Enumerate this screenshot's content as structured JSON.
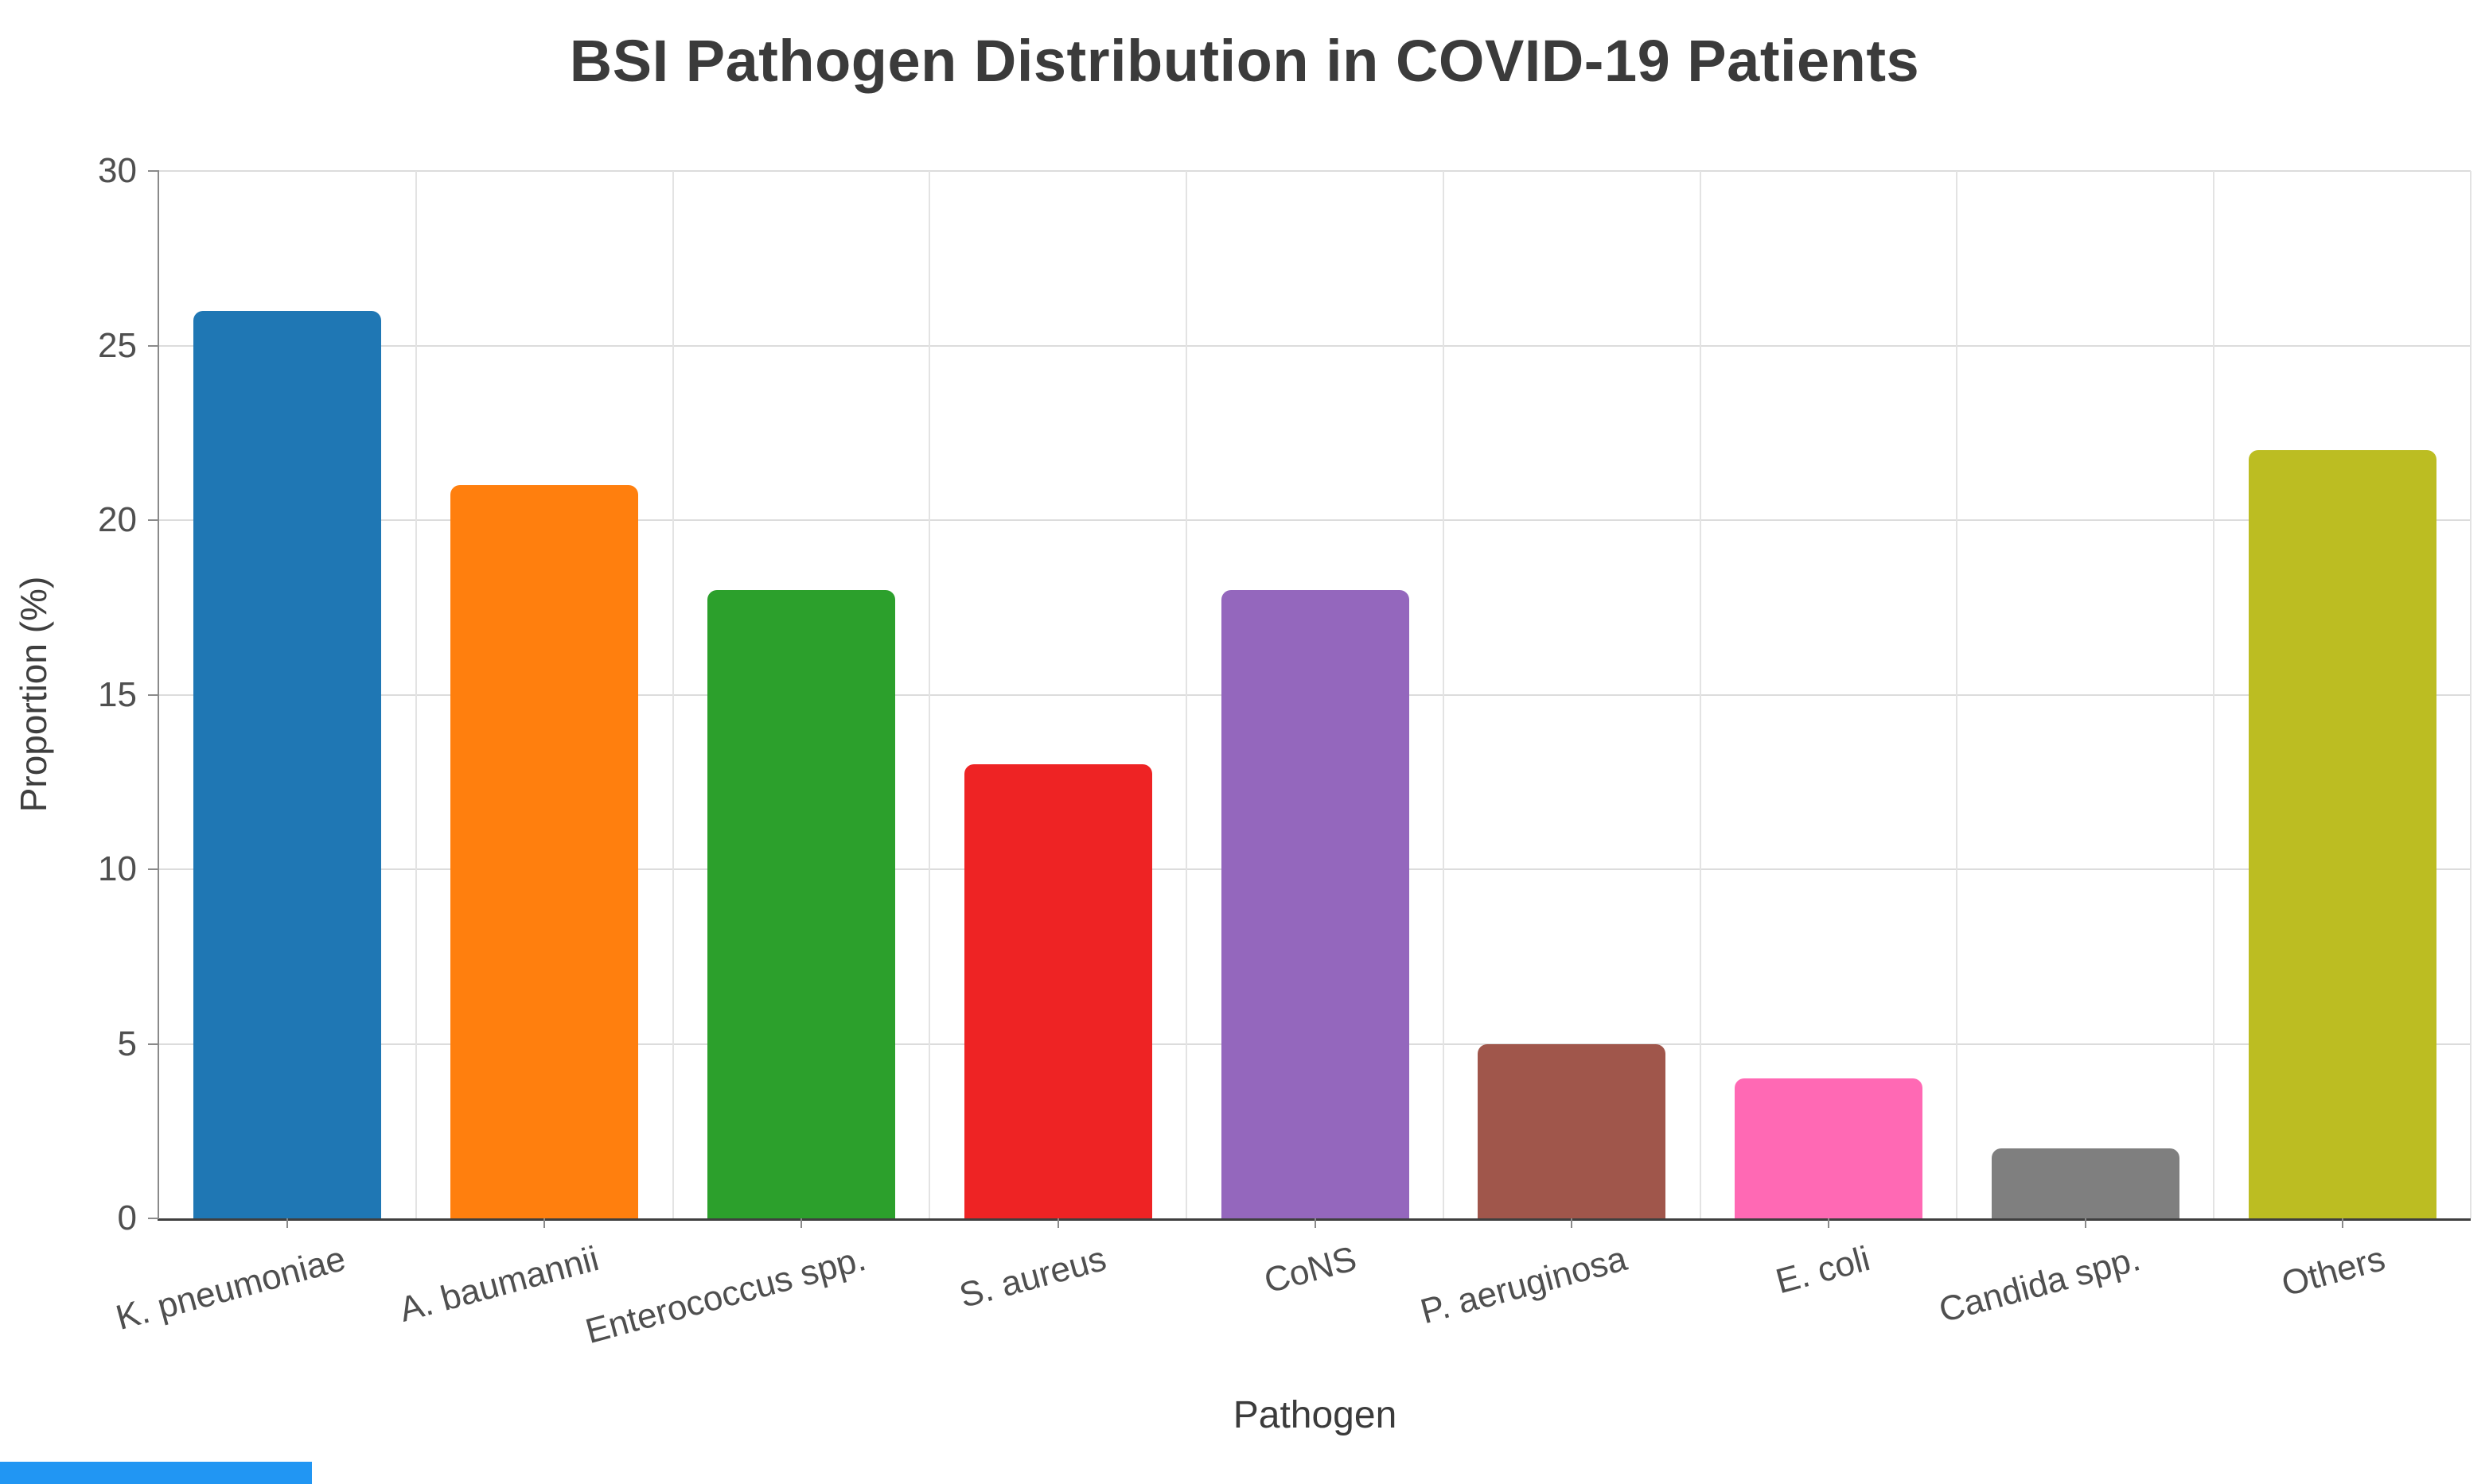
{
  "chart_data": {
    "type": "bar",
    "title": "BSI Pathogen Distribution in COVID-19 Patients",
    "xlabel": "Pathogen",
    "ylabel": "Proportion (%)",
    "categories": [
      "K. pneumoniae",
      "A. baumannii",
      "Enterococcus spp.",
      "S. aureus",
      "CoNS",
      "P. aeruginosa",
      "E. coli",
      "Candida spp.",
      "Others"
    ],
    "values": [
      26,
      21,
      18,
      13,
      18,
      5,
      4,
      2,
      22
    ],
    "colors": [
      "#1f77b4",
      "#ff7f0e",
      "#2ca02c",
      "#ee2324",
      "#9467bd",
      "#a0564b",
      "#ff69b4",
      "#7f7f7f",
      "#bcbd22"
    ],
    "ylim": [
      0,
      30
    ],
    "yticks": [
      0,
      5,
      10,
      15,
      20,
      25,
      30
    ],
    "grid": true,
    "legend": "none",
    "x_tick_rotation_deg": -15
  },
  "decor": {
    "bottom_strip_color": "#2196f3"
  }
}
